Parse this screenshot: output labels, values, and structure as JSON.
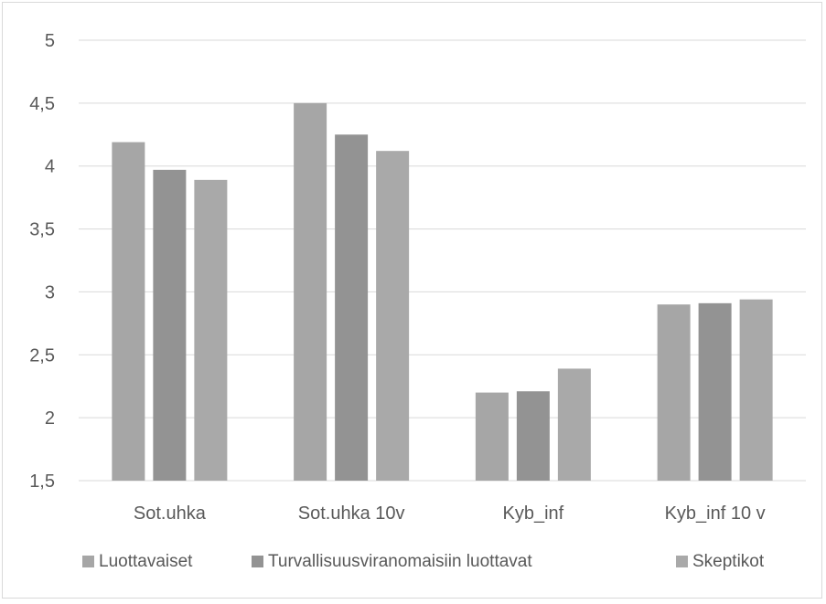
{
  "chart_data": {
    "type": "bar",
    "categories": [
      "Sot.uhka",
      "Sot.uhka 10v",
      "Kyb_inf",
      "Kyb_inf 10 v"
    ],
    "series": [
      {
        "name": "Luottavaiset",
        "values": [
          4.19,
          4.5,
          2.2,
          2.9
        ],
        "color": "#a6a6a6"
      },
      {
        "name": "Turvallisuusviranomaisiin luottavat",
        "values": [
          3.97,
          4.25,
          2.21,
          2.91
        ],
        "color": "#939393"
      },
      {
        "name": "Skeptikot",
        "values": [
          3.89,
          4.12,
          2.39,
          2.94
        ],
        "color": "#a9a9a9"
      }
    ],
    "y_ticks": [
      "5",
      "4,5",
      "4",
      "3,5",
      "3",
      "2,5",
      "2",
      "1,5"
    ],
    "y_tick_values": [
      5,
      4.5,
      4,
      3.5,
      3,
      2.5,
      2,
      1.5
    ],
    "ylim": [
      1.5,
      5
    ],
    "grid": true,
    "legend_position": "bottom",
    "title": "",
    "xlabel": "",
    "ylabel": ""
  }
}
